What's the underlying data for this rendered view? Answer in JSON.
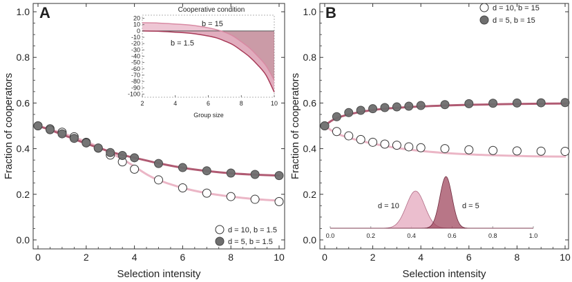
{
  "colors": {
    "curve_light": "#ebb6c6",
    "curve_dark": "#b05a72",
    "fill_light": "#e8b3c5",
    "fill_dark": "#a0485f",
    "marker_filled": "#6e6e6e",
    "axis": "#333333"
  },
  "chart_data": [
    {
      "panel": "A",
      "type": "scatter",
      "xlabel": "Selection intensity",
      "ylabel": "Fraction of cooperators",
      "xlim": [
        0,
        10
      ],
      "ylim": [
        -0.05,
        1.05
      ],
      "xticks": [
        0,
        2,
        4,
        6,
        8,
        10
      ],
      "yticks": [
        0.0,
        0.2,
        0.4,
        0.6,
        0.8,
        1.0
      ],
      "ytick_labels": [
        "0.0",
        "0.2",
        "0.4",
        "0.6",
        "0.8",
        "1.0"
      ],
      "legend": [
        "d = 10, b = 1.5",
        "d = 5,  b = 1.5"
      ],
      "series": [
        {
          "name": "d = 10, b = 1.5",
          "marker": "open",
          "x": [
            0,
            0.5,
            1,
            1.5,
            2,
            2.5,
            3,
            3.5,
            4,
            5,
            6,
            7,
            8,
            9,
            10
          ],
          "y": [
            0.5,
            0.487,
            0.472,
            0.452,
            0.428,
            0.402,
            0.372,
            0.342,
            0.31,
            0.263,
            0.228,
            0.205,
            0.19,
            0.178,
            0.168
          ],
          "theory_x": [
            0,
            0.5,
            1,
            1.5,
            2,
            2.5,
            3,
            3.5,
            4,
            4.5,
            5,
            6,
            7,
            8,
            9,
            10
          ],
          "theory_y": [
            0.5,
            0.485,
            0.468,
            0.45,
            0.43,
            0.408,
            0.382,
            0.354,
            0.322,
            0.288,
            0.262,
            0.228,
            0.205,
            0.19,
            0.179,
            0.172
          ]
        },
        {
          "name": "d = 5,  b = 1.5",
          "marker": "filled",
          "x": [
            0,
            0.5,
            1,
            1.5,
            2,
            2.5,
            3,
            3.5,
            4,
            5,
            6,
            7,
            8,
            9,
            10
          ],
          "y": [
            0.5,
            0.483,
            0.465,
            0.445,
            0.425,
            0.403,
            0.383,
            0.37,
            0.36,
            0.335,
            0.317,
            0.303,
            0.293,
            0.287,
            0.282
          ],
          "theory_x": [
            0,
            0.5,
            1,
            1.5,
            2,
            2.5,
            3,
            3.5,
            4,
            4.5,
            5,
            6,
            7,
            8,
            9,
            10
          ],
          "theory_y": [
            0.5,
            0.482,
            0.462,
            0.442,
            0.422,
            0.404,
            0.387,
            0.372,
            0.36,
            0.348,
            0.336,
            0.316,
            0.302,
            0.292,
            0.286,
            0.282
          ]
        }
      ],
      "inset": {
        "type": "area",
        "title": "Cooperative condition",
        "xlabel": "Group size",
        "xlim": [
          2,
          10
        ],
        "ylim": [
          -105,
          25
        ],
        "xticks": [
          2,
          4,
          6,
          8,
          10
        ],
        "yticks": [
          20,
          10,
          0,
          -10,
          -20,
          -30,
          -40,
          -50,
          -60,
          -70,
          -80,
          -90,
          -100
        ],
        "annotations": [
          "b = 15",
          "b = 1.5"
        ],
        "series": [
          {
            "name": "b = 15",
            "x": [
              2,
              3,
              4,
              5,
              6,
              6.5,
              7,
              7.5,
              8,
              8.5,
              9,
              9.5,
              10
            ],
            "y": [
              13,
              12.5,
              11,
              9,
              5,
              2,
              -2,
              -8,
              -17,
              -27,
              -40,
              -55,
              -78
            ]
          },
          {
            "name": "b = 1.5",
            "x": [
              2,
              3,
              4,
              5,
              6,
              6.5,
              7,
              7.5,
              8,
              8.5,
              9,
              9.5,
              10
            ],
            "y": [
              0,
              -0.5,
              -2,
              -4,
              -8,
              -11,
              -16,
              -22,
              -31,
              -41,
              -54,
              -70,
              -97
            ]
          }
        ]
      }
    },
    {
      "panel": "B",
      "type": "scatter",
      "xlabel": "Selection intensity",
      "ylabel": "Fraction of cooperators",
      "xlim": [
        0,
        10
      ],
      "ylim": [
        -0.05,
        1.05
      ],
      "xticks": [
        0,
        2,
        4,
        6,
        8,
        10
      ],
      "yticks": [
        0.0,
        0.2,
        0.4,
        0.6,
        0.8,
        1.0
      ],
      "ytick_labels": [
        "0.0",
        "0.2",
        "0.4",
        "0.6",
        "0.8",
        "1.0"
      ],
      "legend": [
        "d = 10, b = 15",
        "d = 5,  b = 15"
      ],
      "series": [
        {
          "name": "d = 10, b = 15",
          "marker": "open",
          "x": [
            0,
            0.5,
            1,
            1.5,
            2,
            2.5,
            3,
            3.5,
            4,
            5,
            6,
            7,
            8,
            9,
            10
          ],
          "y": [
            0.5,
            0.475,
            0.456,
            0.44,
            0.428,
            0.42,
            0.415,
            0.408,
            0.404,
            0.4,
            0.395,
            0.392,
            0.39,
            0.389,
            0.388
          ],
          "theory_x": [
            0,
            0.25,
            0.5,
            1,
            1.5,
            2,
            2.5,
            3,
            4,
            5,
            6,
            7,
            8,
            9,
            10
          ],
          "theory_y": [
            0.5,
            0.482,
            0.466,
            0.448,
            0.434,
            0.422,
            0.412,
            0.403,
            0.39,
            0.381,
            0.375,
            0.371,
            0.368,
            0.366,
            0.365
          ]
        },
        {
          "name": "d = 5,  b = 15",
          "marker": "filled",
          "x": [
            0,
            0.5,
            1,
            1.5,
            2,
            2.5,
            3,
            3.5,
            4,
            5,
            6,
            7,
            8,
            9,
            10
          ],
          "y": [
            0.5,
            0.54,
            0.558,
            0.568,
            0.575,
            0.58,
            0.583,
            0.586,
            0.589,
            0.593,
            0.597,
            0.599,
            0.6,
            0.601,
            0.602
          ],
          "theory_x": [
            0,
            0.25,
            0.5,
            1,
            1.5,
            2,
            2.5,
            3,
            4,
            5,
            6,
            7,
            8,
            9,
            10
          ],
          "theory_y": [
            0.5,
            0.52,
            0.534,
            0.55,
            0.561,
            0.569,
            0.575,
            0.579,
            0.585,
            0.589,
            0.592,
            0.594,
            0.596,
            0.597,
            0.598
          ]
        }
      ],
      "distribution_inset": {
        "type": "area",
        "xlim": [
          0.0,
          1.0
        ],
        "xticks": [
          0.0,
          0.2,
          0.4,
          0.6,
          0.8,
          1.0
        ],
        "xtick_labels": [
          "0.0",
          "0.2",
          "0.4",
          "0.6",
          "0.8",
          "1.0"
        ],
        "curves": [
          {
            "name": "d = 10",
            "mean": 0.42,
            "sd": 0.045,
            "peak": 0.72
          },
          {
            "name": "d = 5",
            "mean": 0.57,
            "sd": 0.03,
            "peak": 1.0
          }
        ],
        "annotations": [
          "d = 10",
          "d = 5"
        ]
      }
    }
  ]
}
